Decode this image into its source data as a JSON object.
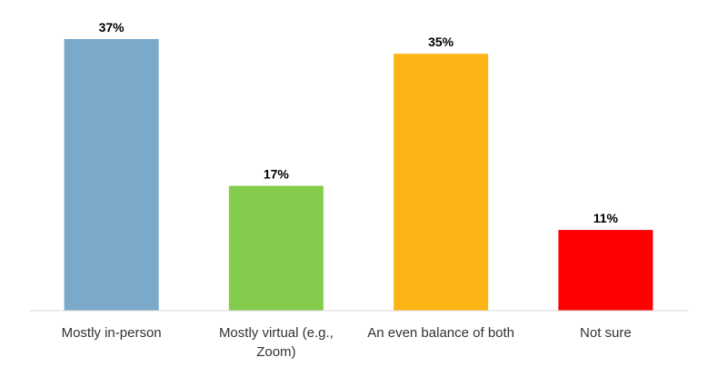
{
  "chart_data": {
    "type": "bar",
    "categories": [
      [
        "Mostly in-person"
      ],
      [
        "Mostly virtual (e.g.,",
        "Zoom)"
      ],
      [
        "An even balance of both"
      ],
      [
        "Not sure"
      ]
    ],
    "values": [
      37,
      17,
      35,
      11
    ],
    "value_labels": [
      "37%",
      "17%",
      "35%",
      "11%"
    ],
    "colors": [
      "#7aa9c9",
      "#84cc4c",
      "#fdb515",
      "#ff0000"
    ],
    "ylim": [
      0,
      37
    ],
    "grid": false,
    "legend": "none"
  }
}
